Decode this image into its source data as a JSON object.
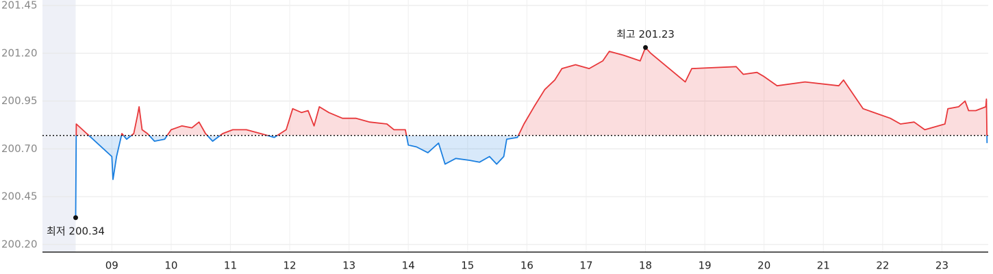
{
  "chart_data": {
    "type": "line",
    "x": [
      8.39,
      8.4,
      9.0,
      9.02,
      9.08,
      9.17,
      9.25,
      9.37,
      9.43,
      9.46,
      9.51,
      9.6,
      9.72,
      9.89,
      10.0,
      10.18,
      10.35,
      10.47,
      10.58,
      10.7,
      10.87,
      11.04,
      11.27,
      11.51,
      11.74,
      11.94,
      12.05,
      12.2,
      12.31,
      12.41,
      12.5,
      12.66,
      12.89,
      13.12,
      13.35,
      13.64,
      13.76,
      13.95,
      14.0,
      14.14,
      14.33,
      14.51,
      14.62,
      14.8,
      15.03,
      15.2,
      15.37,
      15.49,
      15.61,
      15.66,
      15.84,
      15.95,
      16.12,
      16.3,
      16.47,
      16.59,
      16.82,
      17.05,
      17.28,
      17.39,
      17.63,
      17.91,
      18.0,
      18.09,
      18.67,
      18.78,
      19.53,
      19.65,
      19.88,
      19.99,
      20.22,
      20.69,
      21.26,
      21.34,
      21.67,
      22.13,
      22.3,
      22.53,
      22.71,
      23.05,
      23.1,
      23.28,
      23.39,
      23.45,
      23.57,
      23.74,
      23.75,
      23.76
    ],
    "series": [
      {
        "values": [
          200.34,
          200.83,
          200.66,
          200.54,
          200.66,
          200.78,
          200.75,
          200.78,
          200.87,
          200.92,
          200.8,
          200.78,
          200.74,
          200.75,
          200.8,
          200.82,
          200.81,
          200.84,
          200.78,
          200.74,
          200.78,
          200.8,
          200.8,
          200.78,
          200.76,
          200.8,
          200.91,
          200.89,
          200.9,
          200.82,
          200.92,
          200.89,
          200.86,
          200.86,
          200.84,
          200.83,
          200.8,
          200.8,
          200.72,
          200.71,
          200.68,
          200.73,
          200.62,
          200.65,
          200.64,
          200.63,
          200.66,
          200.62,
          200.66,
          200.75,
          200.76,
          200.83,
          200.92,
          201.01,
          201.06,
          201.12,
          201.14,
          201.12,
          201.16,
          201.21,
          201.19,
          201.16,
          201.23,
          201.2,
          201.05,
          201.12,
          201.13,
          201.09,
          201.1,
          201.08,
          201.03,
          201.05,
          201.03,
          201.06,
          200.91,
          200.86,
          200.83,
          200.84,
          200.8,
          200.83,
          200.91,
          200.92,
          200.95,
          200.9,
          200.9,
          200.92,
          200.96,
          200.73
        ]
      }
    ],
    "baseline": 200.77,
    "up_color": "#e8373a",
    "down_color": "#1a7fe0",
    "xlim": [
      7.83,
      23.78
    ],
    "ylim": [
      200.16,
      201.45
    ],
    "xticks": [
      {
        "value": 9,
        "label": "09"
      },
      10,
      11,
      12,
      13,
      14,
      15,
      16,
      17,
      18,
      19,
      20,
      21,
      22,
      23
    ],
    "yticks": [
      {
        "value": 200.2,
        "label": "200.20"
      },
      200.45,
      {
        "value": 200.7,
        "label": "200.70"
      },
      200.95,
      {
        "value": 201.2,
        "label": "201.20"
      },
      201.45
    ],
    "grid": true,
    "annotations": [
      {
        "label": "최고 201.23",
        "x": 18,
        "y": 201.23,
        "position": "above"
      },
      {
        "label": "최저 200.34",
        "x": 8.39,
        "y": 200.34,
        "position": "below"
      }
    ]
  }
}
